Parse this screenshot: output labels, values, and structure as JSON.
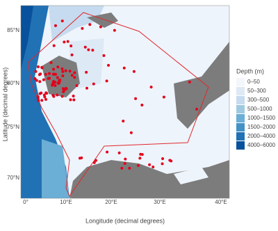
{
  "axes": {
    "x_label": "Longitude (decimal degrees)",
    "y_label": "Latitude (decimal degrees)",
    "lat_ticks": [
      "85°N",
      "80°N",
      "75°N",
      "70°N"
    ],
    "lon_ticks": [
      "0°",
      "10°E",
      "20°E",
      "30°E",
      "40°E"
    ]
  },
  "legend": {
    "title": "Depth (m)",
    "entries": [
      {
        "label": "0–50",
        "color": "#f3f7fc"
      },
      {
        "label": "50–300",
        "color": "#dde9f5"
      },
      {
        "label": "300–500",
        "color": "#c6dbef"
      },
      {
        "label": "500–1000",
        "color": "#9ecae1"
      },
      {
        "label": "1000–1500",
        "color": "#6baed6"
      },
      {
        "label": "1500–2000",
        "color": "#4292c6"
      },
      {
        "label": "2000–4000",
        "color": "#2171b5"
      },
      {
        "label": "4000–6000",
        "color": "#08519c"
      }
    ]
  }
}
